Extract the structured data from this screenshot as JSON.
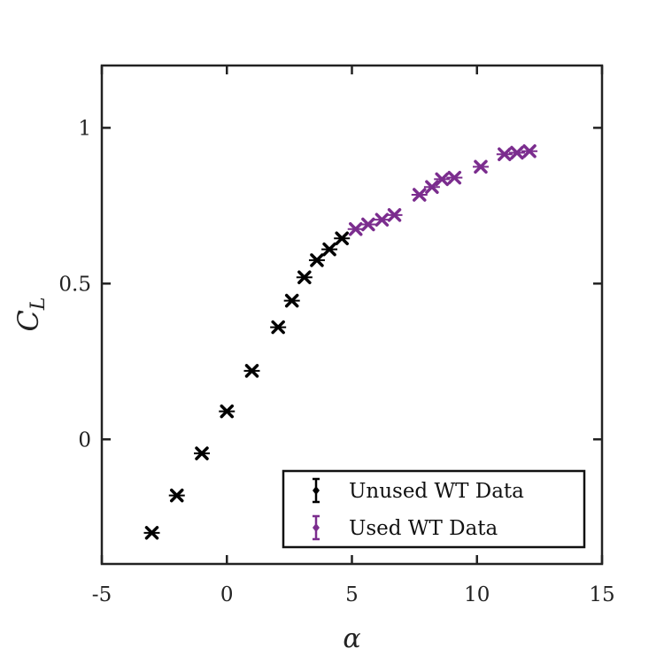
{
  "chart_data": {
    "type": "scatter",
    "xlabel": "α",
    "ylabel_main": "C",
    "ylabel_sub": "L",
    "xlim": [
      -5,
      15
    ],
    "ylim": [
      -0.4,
      1.2
    ],
    "x_ticks": [
      -5,
      0,
      5,
      10,
      15
    ],
    "x_tick_labels": [
      "-5",
      "0",
      "5",
      "10",
      "15"
    ],
    "y_ticks": [
      0,
      0.5,
      1
    ],
    "y_tick_labels": [
      "0",
      "0.5",
      "1"
    ],
    "grid": false,
    "legend_position": "bottom-right",
    "series": [
      {
        "name": "Unused WT Data",
        "color": "#000000",
        "marker": "x",
        "points": [
          [
            -3.0,
            -0.3
          ],
          [
            -2.0,
            -0.18
          ],
          [
            -1.0,
            -0.045
          ],
          [
            0.0,
            0.09
          ],
          [
            1.0,
            0.22
          ],
          [
            2.05,
            0.36
          ],
          [
            2.6,
            0.445
          ],
          [
            3.1,
            0.52
          ],
          [
            3.6,
            0.575
          ],
          [
            4.1,
            0.61
          ],
          [
            4.6,
            0.645
          ]
        ]
      },
      {
        "name": "Used WT Data",
        "color": "#7B2D8E",
        "marker": "x",
        "points": [
          [
            5.15,
            0.675
          ],
          [
            5.65,
            0.69
          ],
          [
            6.2,
            0.705
          ],
          [
            6.7,
            0.72
          ],
          [
            7.7,
            0.785
          ],
          [
            8.2,
            0.81
          ],
          [
            8.6,
            0.835
          ],
          [
            9.1,
            0.84
          ],
          [
            10.15,
            0.875
          ],
          [
            11.1,
            0.915
          ],
          [
            11.6,
            0.92
          ],
          [
            12.1,
            0.925
          ]
        ]
      }
    ]
  }
}
